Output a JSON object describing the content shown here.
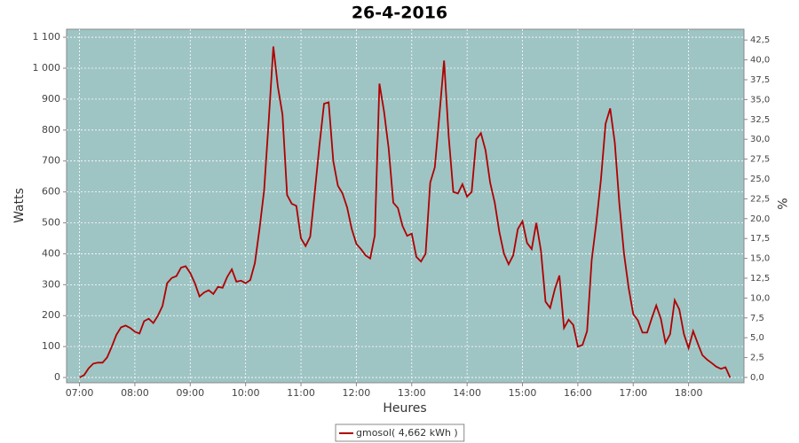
{
  "chart_data": {
    "type": "line",
    "title": "26-4-2016",
    "x_label": "Heures",
    "y_label": "Watts",
    "y2_label": "%",
    "x": [
      "07:00",
      "07:05",
      "07:10",
      "07:15",
      "07:20",
      "07:25",
      "07:30",
      "07:35",
      "07:40",
      "07:45",
      "07:50",
      "07:55",
      "08:00",
      "08:05",
      "08:10",
      "08:15",
      "08:20",
      "08:25",
      "08:30",
      "08:35",
      "08:40",
      "08:45",
      "08:50",
      "08:55",
      "09:00",
      "09:05",
      "09:10",
      "09:15",
      "09:20",
      "09:25",
      "09:30",
      "09:35",
      "09:40",
      "09:45",
      "09:50",
      "09:55",
      "10:00",
      "10:05",
      "10:10",
      "10:15",
      "10:20",
      "10:25",
      "10:30",
      "10:35",
      "10:40",
      "10:45",
      "10:50",
      "10:55",
      "11:00",
      "11:05",
      "11:10",
      "11:15",
      "11:20",
      "11:25",
      "11:30",
      "11:35",
      "11:40",
      "11:45",
      "11:50",
      "11:55",
      "12:00",
      "12:05",
      "12:10",
      "12:15",
      "12:20",
      "12:25",
      "12:30",
      "12:35",
      "12:40",
      "12:45",
      "12:50",
      "12:55",
      "13:00",
      "13:05",
      "13:10",
      "13:15",
      "13:20",
      "13:25",
      "13:30",
      "13:35",
      "13:40",
      "13:45",
      "13:50",
      "13:55",
      "14:00",
      "14:05",
      "14:10",
      "14:15",
      "14:20",
      "14:25",
      "14:30",
      "14:35",
      "14:40",
      "14:45",
      "14:50",
      "14:55",
      "15:00",
      "15:05",
      "15:10",
      "15:15",
      "15:20",
      "15:25",
      "15:30",
      "15:35",
      "15:40",
      "15:45",
      "15:50",
      "15:55",
      "16:00",
      "16:05",
      "16:10",
      "16:15",
      "16:20",
      "16:25",
      "16:30",
      "16:35",
      "16:40",
      "16:45",
      "16:50",
      "16:55",
      "17:00",
      "17:05",
      "17:10",
      "17:15",
      "17:20",
      "17:25",
      "17:30",
      "17:35",
      "17:40",
      "17:45",
      "17:50",
      "17:55",
      "18:00",
      "18:05",
      "18:10",
      "18:15",
      "18:20",
      "18:25",
      "18:30",
      "18:35",
      "18:40",
      "18:45"
    ],
    "series": [
      {
        "name": "gmosol( 4,662 kWh )",
        "color": "#b00000",
        "values": [
          0,
          8,
          30,
          45,
          48,
          48,
          65,
          100,
          138,
          162,
          168,
          160,
          148,
          142,
          182,
          190,
          176,
          200,
          232,
          305,
          322,
          328,
          355,
          360,
          338,
          305,
          262,
          275,
          282,
          270,
          293,
          290,
          325,
          350,
          310,
          313,
          305,
          315,
          370,
          480,
          605,
          830,
          1070,
          940,
          850,
          590,
          562,
          555,
          450,
          425,
          455,
          600,
          750,
          885,
          890,
          700,
          620,
          595,
          550,
          480,
          432,
          415,
          395,
          385,
          460,
          950,
          860,
          740,
          565,
          548,
          490,
          458,
          465,
          390,
          375,
          400,
          630,
          680,
          850,
          1025,
          780,
          600,
          595,
          625,
          585,
          600,
          770,
          790,
          735,
          630,
          565,
          470,
          400,
          366,
          395,
          480,
          505,
          435,
          415,
          500,
          410,
          245,
          225,
          285,
          330,
          160,
          187,
          170,
          100,
          105,
          150,
          380,
          500,
          640,
          820,
          870,
          760,
          560,
          400,
          290,
          205,
          185,
          145,
          145,
          190,
          233,
          190,
          112,
          140,
          250,
          220,
          140,
          95,
          150,
          110,
          72,
          58,
          47,
          35,
          28,
          33,
          0
        ]
      }
    ],
    "xlim": [
      "06:46",
      "19:00"
    ],
    "xticks": [
      "07:00",
      "08:00",
      "09:00",
      "10:00",
      "11:00",
      "12:00",
      "13:00",
      "14:00",
      "15:00",
      "16:00",
      "17:00",
      "18:00"
    ],
    "ylim": [
      -17,
      1126
    ],
    "yticks": [
      0,
      100,
      200,
      300,
      400,
      500,
      600,
      700,
      800,
      900,
      {
        "value": 1000,
        "label": "1 000"
      },
      {
        "value": 1100,
        "label": "1 100"
      }
    ],
    "y2lim": [
      -0.67,
      43.86
    ],
    "y2ticks": [
      {
        "value": 0,
        "label": "0,0"
      },
      {
        "value": 2.5,
        "label": "2,5"
      },
      {
        "value": 5,
        "label": "5,0"
      },
      {
        "value": 7.5,
        "label": "7,5"
      },
      {
        "value": 10,
        "label": "10,0"
      },
      {
        "value": 12.5,
        "label": "12,5"
      },
      {
        "value": 15,
        "label": "15,0"
      },
      {
        "value": 17.5,
        "label": "17,5"
      },
      {
        "value": 20,
        "label": "20,0"
      },
      {
        "value": 22.5,
        "label": "22,5"
      },
      {
        "value": 25,
        "label": "25,0"
      },
      {
        "value": 27.5,
        "label": "27,5"
      },
      {
        "value": 30,
        "label": "30,0"
      },
      {
        "value": 32.5,
        "label": "32,5"
      },
      {
        "value": 35,
        "label": "35,0"
      },
      {
        "value": 37.5,
        "label": "37,5"
      },
      {
        "value": 40,
        "label": "40,0"
      },
      {
        "value": 42.5,
        "label": "42,5"
      }
    ],
    "grid": true,
    "legend": "bottom",
    "plot_background": "#9fc4c4"
  }
}
